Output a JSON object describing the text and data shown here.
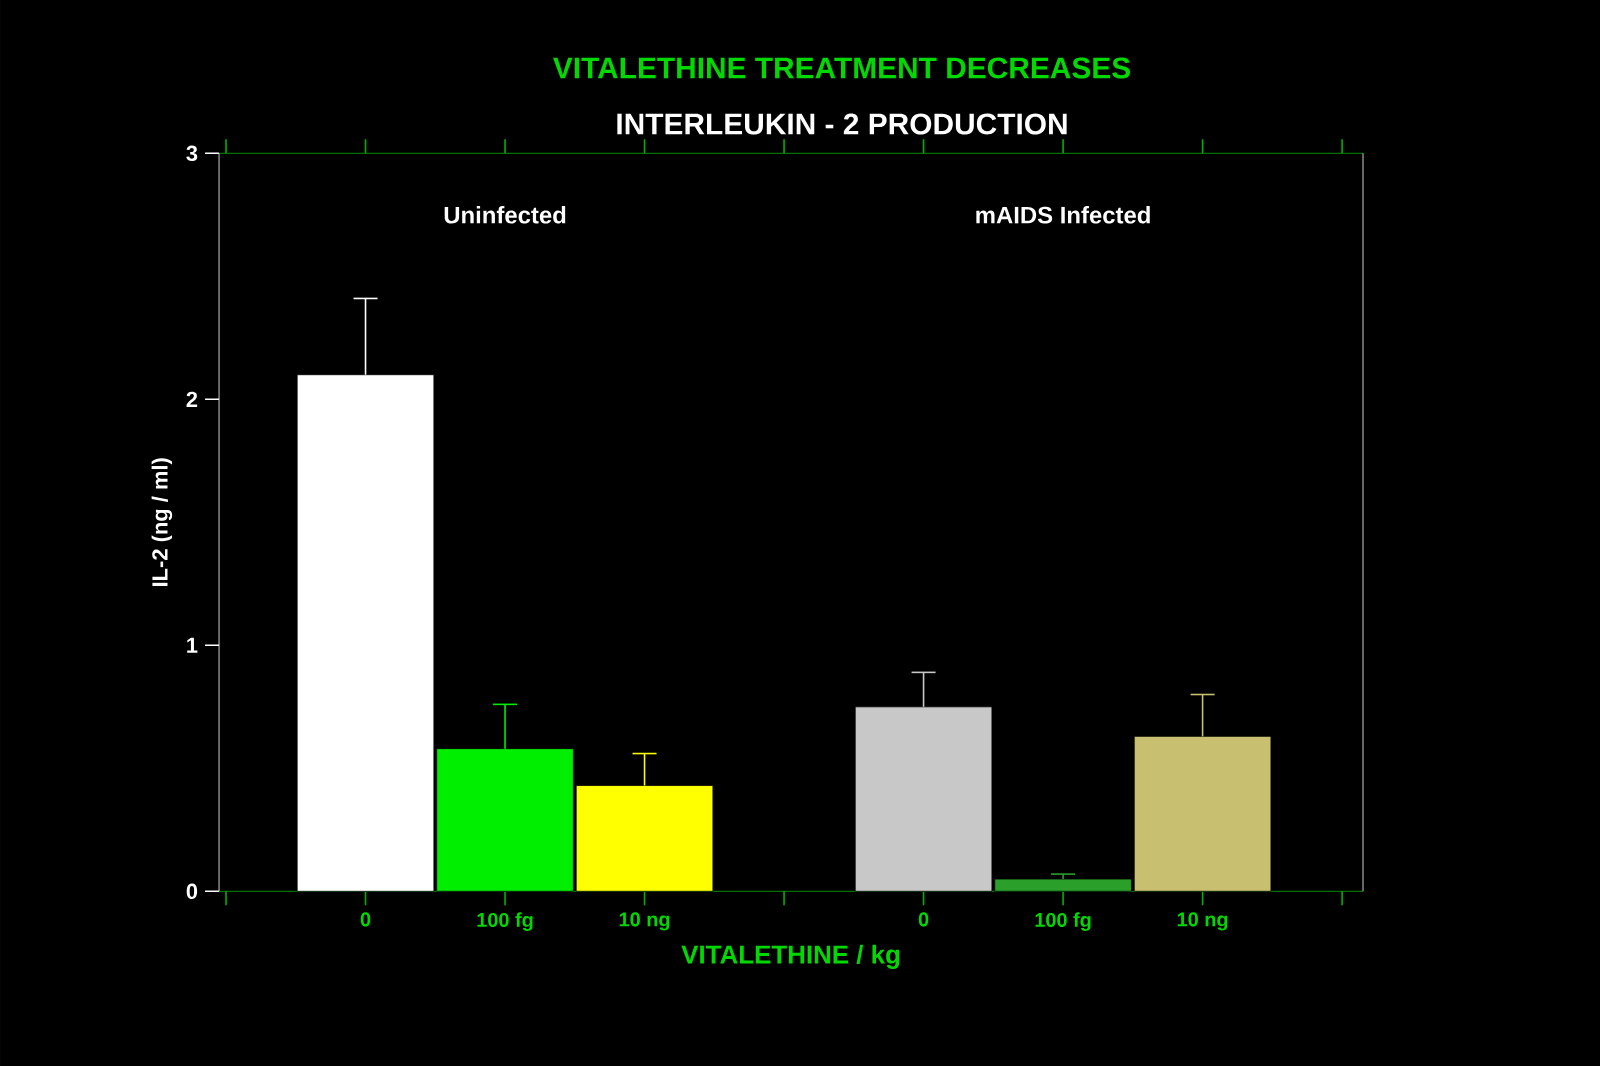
{
  "chart_data": {
    "type": "bar",
    "title": "VITALETHINE TREATMENT DECREASES",
    "subtitle": "INTERLEUKIN - 2 PRODUCTION",
    "xlabel": "VITALETHINE / kg",
    "ylabel": "IL-2 (ng / ml)",
    "categories": [
      "0",
      "100 fg",
      "10 ng",
      null,
      "0",
      "100 fg",
      "10 ng"
    ],
    "values": [
      2.1,
      0.58,
      0.43,
      null,
      0.75,
      0.05,
      0.63
    ],
    "errors": [
      0.31,
      0.18,
      0.13,
      null,
      0.14,
      0.02,
      0.17
    ],
    "colors": [
      "#ffffff",
      "#00ee00",
      "#ffff00",
      null,
      "#c8c8c8",
      "#2aa02a",
      "#c8c070"
    ],
    "annotations": [
      "Uninfected",
      "mAIDS Infected"
    ],
    "ylim": [
      0,
      3
    ],
    "yticks": [
      0,
      1,
      2,
      3
    ],
    "grid": false
  }
}
